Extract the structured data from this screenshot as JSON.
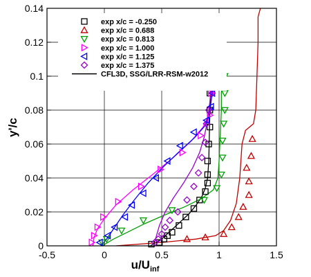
{
  "chart_data": {
    "type": "scatter",
    "title": "",
    "xlabel": "u/U",
    "xlabel_sub": "inf",
    "ylabel": "y'/c",
    "xlim": [
      -0.5,
      1.5
    ],
    "ylim": [
      0,
      0.14
    ],
    "grid": true,
    "legend_position": "top-left",
    "x_ticks": [
      -0.5,
      0,
      0.5,
      1,
      1.5
    ],
    "x_tick_labels": [
      "-0.5",
      "0",
      "0.5",
      "1",
      "1.5"
    ],
    "y_ticks": [
      0,
      0.02,
      0.04,
      0.06,
      0.08,
      0.1,
      0.12,
      0.14
    ],
    "y_tick_labels": [
      "0",
      "0.02",
      "0.04",
      "0.06",
      "0.08",
      "0.1",
      "0.12",
      "0.14"
    ],
    "series": [
      {
        "name": "exp x/c = -0.250",
        "marker": "square",
        "color": "#000000",
        "points": [
          [
            0.41,
            0.001
          ],
          [
            0.48,
            0.002
          ],
          [
            0.52,
            0.004
          ],
          [
            0.55,
            0.006
          ],
          [
            0.59,
            0.008
          ],
          [
            0.65,
            0.012
          ],
          [
            0.71,
            0.017
          ],
          [
            0.78,
            0.022
          ],
          [
            0.83,
            0.027
          ],
          [
            0.88,
            0.032
          ],
          [
            0.9,
            0.037
          ],
          [
            0.9,
            0.042
          ],
          [
            0.9,
            0.05
          ],
          [
            0.91,
            0.06
          ],
          [
            0.92,
            0.07
          ],
          [
            0.92,
            0.08
          ],
          [
            0.92,
            0.09
          ],
          [
            0.92,
            0.1
          ]
        ]
      },
      {
        "name": "exp x/c = 0.688",
        "marker": "triangle-up",
        "color": "#c00000",
        "points": [
          [
            0.72,
            0.004
          ],
          [
            0.88,
            0.005
          ],
          [
            1.04,
            0.007
          ],
          [
            1.11,
            0.011
          ],
          [
            1.17,
            0.017
          ],
          [
            1.21,
            0.023
          ],
          [
            1.26,
            0.03
          ],
          [
            1.26,
            0.038
          ],
          [
            1.24,
            0.046
          ],
          [
            1.28,
            0.053
          ],
          [
            1.29,
            0.063
          ]
        ]
      },
      {
        "name": "exp x/c = 0.813",
        "marker": "triangle-down",
        "color": "#00a000",
        "points": [
          [
            -0.02,
            0.002
          ],
          [
            0.02,
            0.004
          ],
          [
            0.15,
            0.009
          ],
          [
            0.34,
            0.015
          ],
          [
            0.59,
            0.021
          ],
          [
            0.87,
            0.027
          ],
          [
            0.98,
            0.034
          ],
          [
            1.02,
            0.042
          ],
          [
            1.03,
            0.052
          ],
          [
            1.03,
            0.062
          ],
          [
            1.04,
            0.072
          ],
          [
            1.05,
            0.08
          ],
          [
            1.05,
            0.09
          ],
          [
            1.05,
            0.1
          ]
        ]
      },
      {
        "name": "exp x/c = 1.000",
        "marker": "triangle-right",
        "color": "#ff00ff",
        "points": [
          [
            -0.11,
            0.002
          ],
          [
            -0.09,
            0.006
          ],
          [
            -0.06,
            0.011
          ],
          [
            -0.01,
            0.017
          ],
          [
            0.12,
            0.026
          ],
          [
            0.32,
            0.035
          ],
          [
            0.49,
            0.045
          ],
          [
            0.68,
            0.055
          ],
          [
            0.84,
            0.065
          ],
          [
            0.92,
            0.077
          ],
          [
            0.93,
            0.09
          ],
          [
            0.95,
            0.1
          ]
        ]
      },
      {
        "name": "exp x/c = 1.125",
        "marker": "triangle-left",
        "color": "#0000ff",
        "points": [
          [
            -0.04,
            0.002
          ],
          [
            0.03,
            0.006
          ],
          [
            0.09,
            0.011
          ],
          [
            0.18,
            0.017
          ],
          [
            0.24,
            0.024
          ],
          [
            0.34,
            0.031
          ],
          [
            0.45,
            0.04
          ],
          [
            0.55,
            0.05
          ],
          [
            0.66,
            0.059
          ],
          [
            0.78,
            0.067
          ],
          [
            0.89,
            0.074
          ],
          [
            0.93,
            0.082
          ],
          [
            0.94,
            0.09
          ],
          [
            0.95,
            0.1
          ]
        ]
      },
      {
        "name": "exp x/c = 1.375",
        "marker": "diamond",
        "color": "#9900cc",
        "points": [
          [
            0.44,
            0.002
          ],
          [
            0.47,
            0.004
          ],
          [
            0.5,
            0.007
          ],
          [
            0.53,
            0.011
          ],
          [
            0.57,
            0.015
          ],
          [
            0.64,
            0.02
          ],
          [
            0.72,
            0.027
          ],
          [
            0.78,
            0.035
          ],
          [
            0.82,
            0.043
          ],
          [
            0.85,
            0.052
          ],
          [
            0.88,
            0.061
          ],
          [
            0.89,
            0.072
          ],
          [
            0.91,
            0.08
          ],
          [
            0.94,
            0.09
          ],
          [
            0.95,
            0.1
          ]
        ]
      },
      {
        "name": "CFL3D, SSG/LRR-RSM-w2012",
        "legend_marker": "line",
        "color": "#000000",
        "lines": [
          {
            "color": "#000000",
            "points": [
              [
                0.4,
                0.0
              ],
              [
                0.5,
                0.004
              ],
              [
                0.58,
                0.009
              ],
              [
                0.66,
                0.014
              ],
              [
                0.74,
                0.019
              ],
              [
                0.8,
                0.024
              ],
              [
                0.85,
                0.029
              ],
              [
                0.88,
                0.034
              ],
              [
                0.9,
                0.04
              ],
              [
                0.91,
                0.05
              ],
              [
                0.915,
                0.065
              ],
              [
                0.92,
                0.08
              ],
              [
                0.93,
                0.095
              ],
              [
                0.93,
                0.1
              ]
            ]
          },
          {
            "color": "#c00000",
            "points": [
              [
                0.1,
                0.0
              ],
              [
                0.5,
                0.002
              ],
              [
                0.8,
                0.004
              ],
              [
                0.97,
                0.006
              ],
              [
                1.04,
                0.009
              ],
              [
                1.1,
                0.015
              ],
              [
                1.15,
                0.025
              ],
              [
                1.18,
                0.04
              ],
              [
                1.2,
                0.06
              ],
              [
                1.23,
                0.068
              ],
              [
                1.3,
                0.072
              ],
              [
                1.32,
                0.08
              ],
              [
                1.33,
                0.1
              ],
              [
                1.34,
                0.12
              ],
              [
                1.34,
                0.135
              ],
              [
                1.36,
                0.14
              ]
            ]
          },
          {
            "color": "#00a000",
            "points": [
              [
                -0.02,
                0.0
              ],
              [
                0.08,
                0.004
              ],
              [
                0.2,
                0.008
              ],
              [
                0.35,
                0.013
              ],
              [
                0.52,
                0.018
              ],
              [
                0.7,
                0.023
              ],
              [
                0.85,
                0.028
              ],
              [
                0.95,
                0.033
              ],
              [
                0.99,
                0.04
              ],
              [
                1.0,
                0.05
              ],
              [
                1.01,
                0.065
              ],
              [
                1.02,
                0.08
              ],
              [
                1.02,
                0.09
              ],
              [
                1.03,
                0.1
              ]
            ]
          },
          {
            "color": "#ff00ff",
            "points": [
              [
                -0.1,
                0.0
              ],
              [
                -0.09,
                0.005
              ],
              [
                -0.06,
                0.01
              ],
              [
                0.0,
                0.016
              ],
              [
                0.1,
                0.024
              ],
              [
                0.25,
                0.033
              ],
              [
                0.42,
                0.042
              ],
              [
                0.6,
                0.052
              ],
              [
                0.76,
                0.062
              ],
              [
                0.86,
                0.07
              ],
              [
                0.91,
                0.077
              ],
              [
                0.93,
                0.085
              ],
              [
                0.95,
                0.1
              ]
            ]
          },
          {
            "color": "#0000ff",
            "points": [
              [
                -0.03,
                0.0
              ],
              [
                0.02,
                0.004
              ],
              [
                0.08,
                0.01
              ],
              [
                0.16,
                0.018
              ],
              [
                0.26,
                0.027
              ],
              [
                0.38,
                0.037
              ],
              [
                0.52,
                0.047
              ],
              [
                0.66,
                0.056
              ],
              [
                0.79,
                0.064
              ],
              [
                0.88,
                0.071
              ],
              [
                0.92,
                0.08
              ],
              [
                0.94,
                0.09
              ],
              [
                0.95,
                0.1
              ]
            ]
          },
          {
            "color": "#9900cc",
            "points": [
              [
                0.43,
                0.0
              ],
              [
                0.45,
                0.005
              ],
              [
                0.48,
                0.012
              ],
              [
                0.53,
                0.02
              ],
              [
                0.6,
                0.028
              ],
              [
                0.69,
                0.037
              ],
              [
                0.77,
                0.046
              ],
              [
                0.83,
                0.055
              ],
              [
                0.87,
                0.064
              ],
              [
                0.9,
                0.074
              ],
              [
                0.92,
                0.085
              ],
              [
                0.94,
                0.1
              ]
            ]
          }
        ]
      }
    ]
  }
}
